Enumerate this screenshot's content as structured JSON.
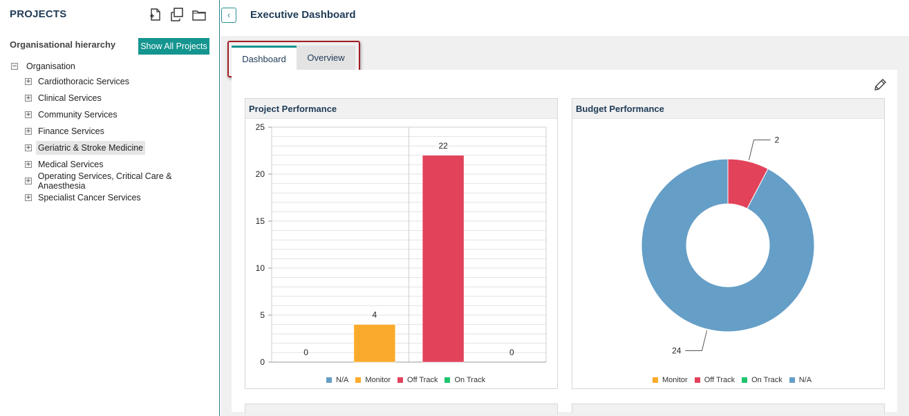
{
  "sidebar": {
    "title": "PROJECTS",
    "subtitle": "Organisational hierarchy",
    "show_all_label": "Show All Projects",
    "tree": {
      "root_label": "Organisation",
      "root_toggle": "−",
      "item_toggle": "+",
      "items": [
        {
          "label": "Cardiothoracic Services"
        },
        {
          "label": "Clinical Services"
        },
        {
          "label": "Community Services"
        },
        {
          "label": "Finance Services"
        },
        {
          "label": "Geriatric & Stroke Medicine",
          "selected": true
        },
        {
          "label": "Medical Services"
        },
        {
          "label": "Operating Services, Critical Care & Anaesthesia"
        },
        {
          "label": "Specialist Cancer Services"
        }
      ]
    }
  },
  "header": {
    "collapse_glyph": "‹",
    "title": "Executive Dashboard"
  },
  "tabs": [
    {
      "label": "Dashboard",
      "active": true
    },
    {
      "label": "Overview",
      "active": false
    }
  ],
  "colors": {
    "na": "#659ec7",
    "monitor": "#fbab2b",
    "off_track": "#e2435b",
    "on_track": "#1fc46d",
    "accent": "#14958f"
  },
  "chart_data": [
    {
      "type": "bar",
      "title": "Project Performance",
      "categories": [
        "N/A",
        "Monitor",
        "Off Track",
        "On Track"
      ],
      "values": [
        0,
        4,
        22,
        0
      ],
      "ylim": [
        0,
        25
      ],
      "yticks": [
        0,
        5,
        10,
        15,
        20,
        25
      ],
      "legend": [
        "N/A",
        "Monitor",
        "Off Track",
        "On Track"
      ],
      "legend_position": "bottom-center"
    },
    {
      "type": "pie",
      "variant": "donut",
      "title": "Budget Performance",
      "slices": [
        {
          "label": "Monitor",
          "value": 0
        },
        {
          "label": "Off Track",
          "value": 2
        },
        {
          "label": "On Track",
          "value": 0
        },
        {
          "label": "N/A",
          "value": 24
        }
      ],
      "legend": [
        "Monitor",
        "Off Track",
        "On Track",
        "N/A"
      ],
      "legend_position": "bottom-center"
    }
  ]
}
